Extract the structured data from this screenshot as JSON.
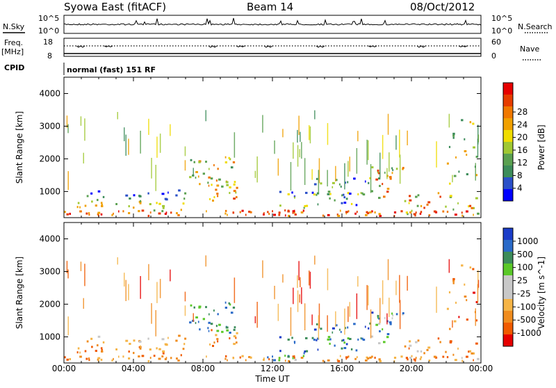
{
  "header": {
    "station": "Syowa East (fitACF)",
    "beam": "Beam 14",
    "date": "08/Oct/2012"
  },
  "aux_labels": {
    "nsky": "N.Sky",
    "nsearch": "N.Search",
    "freq": "Freq.",
    "freq_unit": "[MHz]",
    "nave": "Nave",
    "cpid": "CPID",
    "cpid_text": "normal (fast) 151 RF",
    "noise_top": "10^5",
    "noise_bottom": "10^0",
    "freq_top": "18",
    "freq_bottom": "8",
    "nave_top": "60",
    "nave_bottom": "0"
  },
  "colors": {
    "power": [
      "#0000ff",
      "#2a4fc8",
      "#3c8c5a",
      "#5aa050",
      "#a0c832",
      "#f0dc00",
      "#f0a000",
      "#f07800",
      "#e63c00",
      "#e60000"
    ],
    "velocity": [
      "#e60000",
      "#f05a00",
      "#f08c1e",
      "#f5b446",
      "#c8c8c8",
      "#c8c8c8",
      "#5ac828",
      "#3c8c5a",
      "#2a6ac8",
      "#1a3cc8"
    ]
  },
  "chart_data": [
    {
      "type": "heatmap",
      "title": "",
      "xlabel": "",
      "ylabel": "Slant Range [km]",
      "x_ticks": [
        "00:00",
        "04:00",
        "08:00",
        "12:00",
        "16:00",
        "20:00",
        "00:00"
      ],
      "xlim": [
        0,
        24
      ],
      "ylim": [
        200,
        4500
      ],
      "y_ticks": [
        "1000",
        "2000",
        "3000",
        "4000"
      ],
      "colorbar": {
        "label": "Power [dB]",
        "ticks": [
          "4",
          "8",
          "12",
          "16",
          "20",
          "24",
          "28"
        ],
        "range": [
          0,
          30
        ]
      }
    },
    {
      "type": "heatmap",
      "title": "",
      "xlabel": "Time UT",
      "ylabel": "Slant Range [km]",
      "x_ticks": [
        "00:00",
        "04:00",
        "08:00",
        "12:00",
        "16:00",
        "20:00",
        "00:00"
      ],
      "xlim": [
        0,
        24
      ],
      "ylim": [
        200,
        4500
      ],
      "y_ticks": [
        "1000",
        "2000",
        "3000",
        "4000"
      ],
      "colorbar": {
        "label": "Velocity [m s^-1]",
        "ticks": [
          "1000",
          "500",
          "100",
          "25",
          "-25",
          "-100",
          "-500",
          "-1000"
        ]
      }
    }
  ]
}
